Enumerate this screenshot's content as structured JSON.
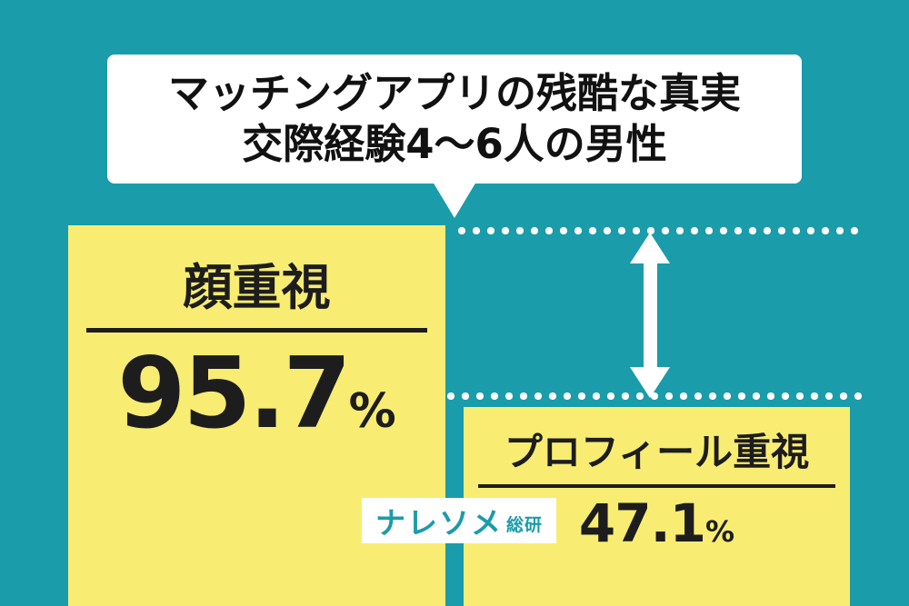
{
  "colors": {
    "background": "#1A9CAA",
    "bar_fill": "#F8ED72",
    "title_bg": "#FFFFFF",
    "text": "#1D1D1D",
    "guide_white": "#FFFFFF"
  },
  "title": {
    "line1": "マッチングアプリの残酷な真実",
    "line2": "交際経験4〜6人の男性"
  },
  "bars": {
    "left": {
      "label": "顔重視",
      "value": "95.7",
      "unit": "%"
    },
    "right": {
      "label": "プロフィール重視",
      "value": "47.1",
      "unit": "%"
    }
  },
  "logo": {
    "main": "ナレソメ",
    "sub": "総研"
  },
  "chart_data": {
    "type": "bar",
    "title": "マッチングアプリの残酷な真実 交際経験4〜6人の男性",
    "categories": [
      "顔重視",
      "プロフィール重視"
    ],
    "values": [
      95.7,
      47.1
    ],
    "unit": "%",
    "ylim": [
      0,
      100
    ],
    "orientation": "vertical",
    "grid": false,
    "legend_position": "none",
    "bar_color": "#F8ED72",
    "value_labels_shown": true
  }
}
